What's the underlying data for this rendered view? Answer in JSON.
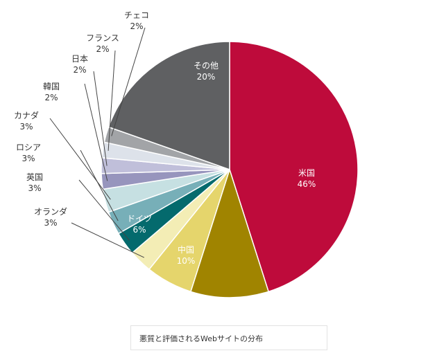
{
  "chart_data": {
    "type": "pie",
    "title": "",
    "caption": "悪質と評価されるWebサイトの分布",
    "start": "12 o'clock, clockwise",
    "slices": [
      {
        "label": "米国",
        "value": 46,
        "display": "46%",
        "color": "#be0b3b"
      },
      {
        "label": "中国",
        "value": 10,
        "display": "10%",
        "color": "#a08400"
      },
      {
        "label": "ドイツ",
        "value": 6,
        "display": "6%",
        "color": "#e5d56c"
      },
      {
        "label": "オランダ",
        "value": 3,
        "display": "3%",
        "color": "#f3edb5"
      },
      {
        "label": "英国",
        "value": 3,
        "display": "3%",
        "color": "#046a6d"
      },
      {
        "label": "ロシア",
        "value": 3,
        "display": "3%",
        "color": "#77afb8"
      },
      {
        "label": "カナダ",
        "value": 3,
        "display": "3%",
        "color": "#c6e0e2"
      },
      {
        "label": "韓国",
        "value": 2,
        "display": "2%",
        "color": "#9795bd"
      },
      {
        "label": "日本",
        "value": 2,
        "display": "2%",
        "color": "#c0bfda"
      },
      {
        "label": "フランス",
        "value": 2,
        "display": "2%",
        "color": "#dde2ea"
      },
      {
        "label": "チェコ",
        "value": 2,
        "display": "2%",
        "color": "#a2a4a7"
      },
      {
        "label": "その他",
        "value": 20,
        "display": "20%",
        "color": "#5f6062"
      }
    ]
  }
}
